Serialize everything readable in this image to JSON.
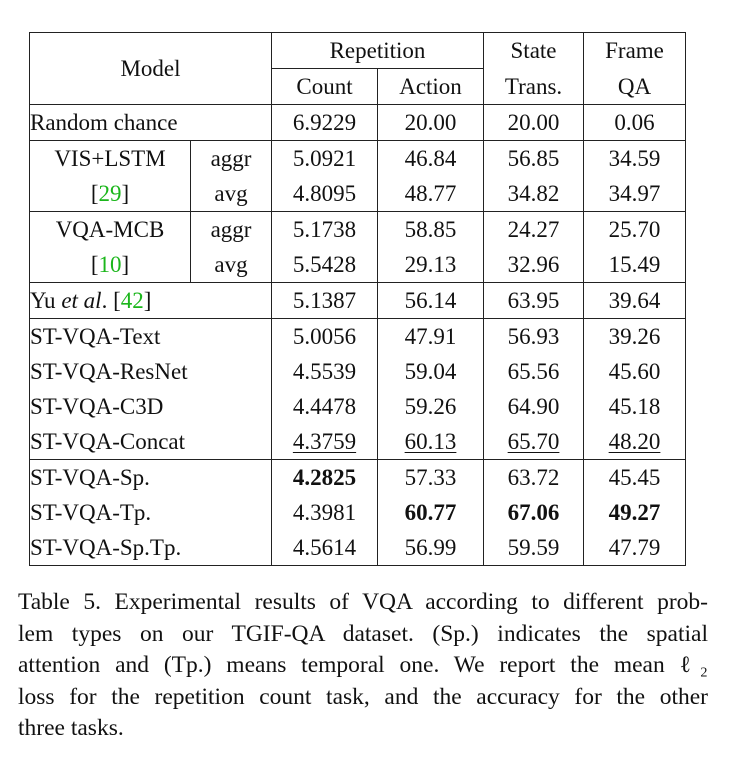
{
  "table": {
    "header": {
      "model": "Model",
      "repetition": "Repetition",
      "count": "Count",
      "action": "Action",
      "state_l1": "State",
      "state_l2": "Trans.",
      "frame_l1": "Frame",
      "frame_l2": "QA"
    },
    "random": {
      "label": "Random chance",
      "v": [
        "6.9229",
        "20.00",
        "20.00",
        "0.06"
      ]
    },
    "vis": {
      "name": "VIS+LSTM",
      "ref_open": "[",
      "ref": "29",
      "ref_close": "]",
      "aggr": {
        "label": "aggr",
        "v": [
          "5.0921",
          "46.84",
          "56.85",
          "34.59"
        ]
      },
      "avg": {
        "label": "avg",
        "v": [
          "4.8095",
          "48.77",
          "34.82",
          "34.97"
        ]
      }
    },
    "vqa": {
      "name": "VQA-MCB",
      "ref_open": "[",
      "ref": "10",
      "ref_close": "]",
      "aggr": {
        "label": "aggr",
        "v": [
          "5.1738",
          "58.85",
          "24.27",
          "25.70"
        ]
      },
      "avg": {
        "label": "avg",
        "v": [
          "5.5428",
          "29.13",
          "32.96",
          "15.49"
        ]
      }
    },
    "yu": {
      "pre": "Yu ",
      "etal": "et al",
      "dot": ". [",
      "ref": "42",
      "close": "]",
      "v": [
        "5.1387",
        "56.14",
        "63.95",
        "39.64"
      ]
    },
    "group1": [
      {
        "label": "ST-VQA-Text",
        "v": [
          "5.0056",
          "47.91",
          "56.93",
          "39.26"
        ]
      },
      {
        "label": "ST-VQA-ResNet",
        "v": [
          "4.5539",
          "59.04",
          "65.56",
          "45.60"
        ]
      },
      {
        "label": "ST-VQA-C3D",
        "v": [
          "4.4478",
          "59.26",
          "64.90",
          "45.18"
        ]
      },
      {
        "label": "ST-VQA-Concat",
        "v": [
          "4.3759",
          "60.13",
          "65.70",
          "48.20"
        ]
      }
    ],
    "group2": [
      {
        "label": "ST-VQA-Sp.",
        "v": [
          "4.2825",
          "57.33",
          "63.72",
          "45.45"
        ]
      },
      {
        "label": "ST-VQA-Tp.",
        "v": [
          "4.3981",
          "60.77",
          "67.06",
          "49.27"
        ]
      },
      {
        "label": "ST-VQA-Sp.Tp.",
        "v": [
          "4.5614",
          "56.99",
          "59.59",
          "47.79"
        ]
      }
    ]
  },
  "caption": {
    "lines": [
      "Table 5. Experimental results of VQA according to different prob-",
      "lem types on our TGIF-QA dataset.  (Sp.)  indicates the spatial",
      "attention and (Tp.)  means temporal one.  We report the mean ℓ₂",
      "loss for the repetition count task, and the accuracy for the other",
      "three tasks."
    ]
  }
}
